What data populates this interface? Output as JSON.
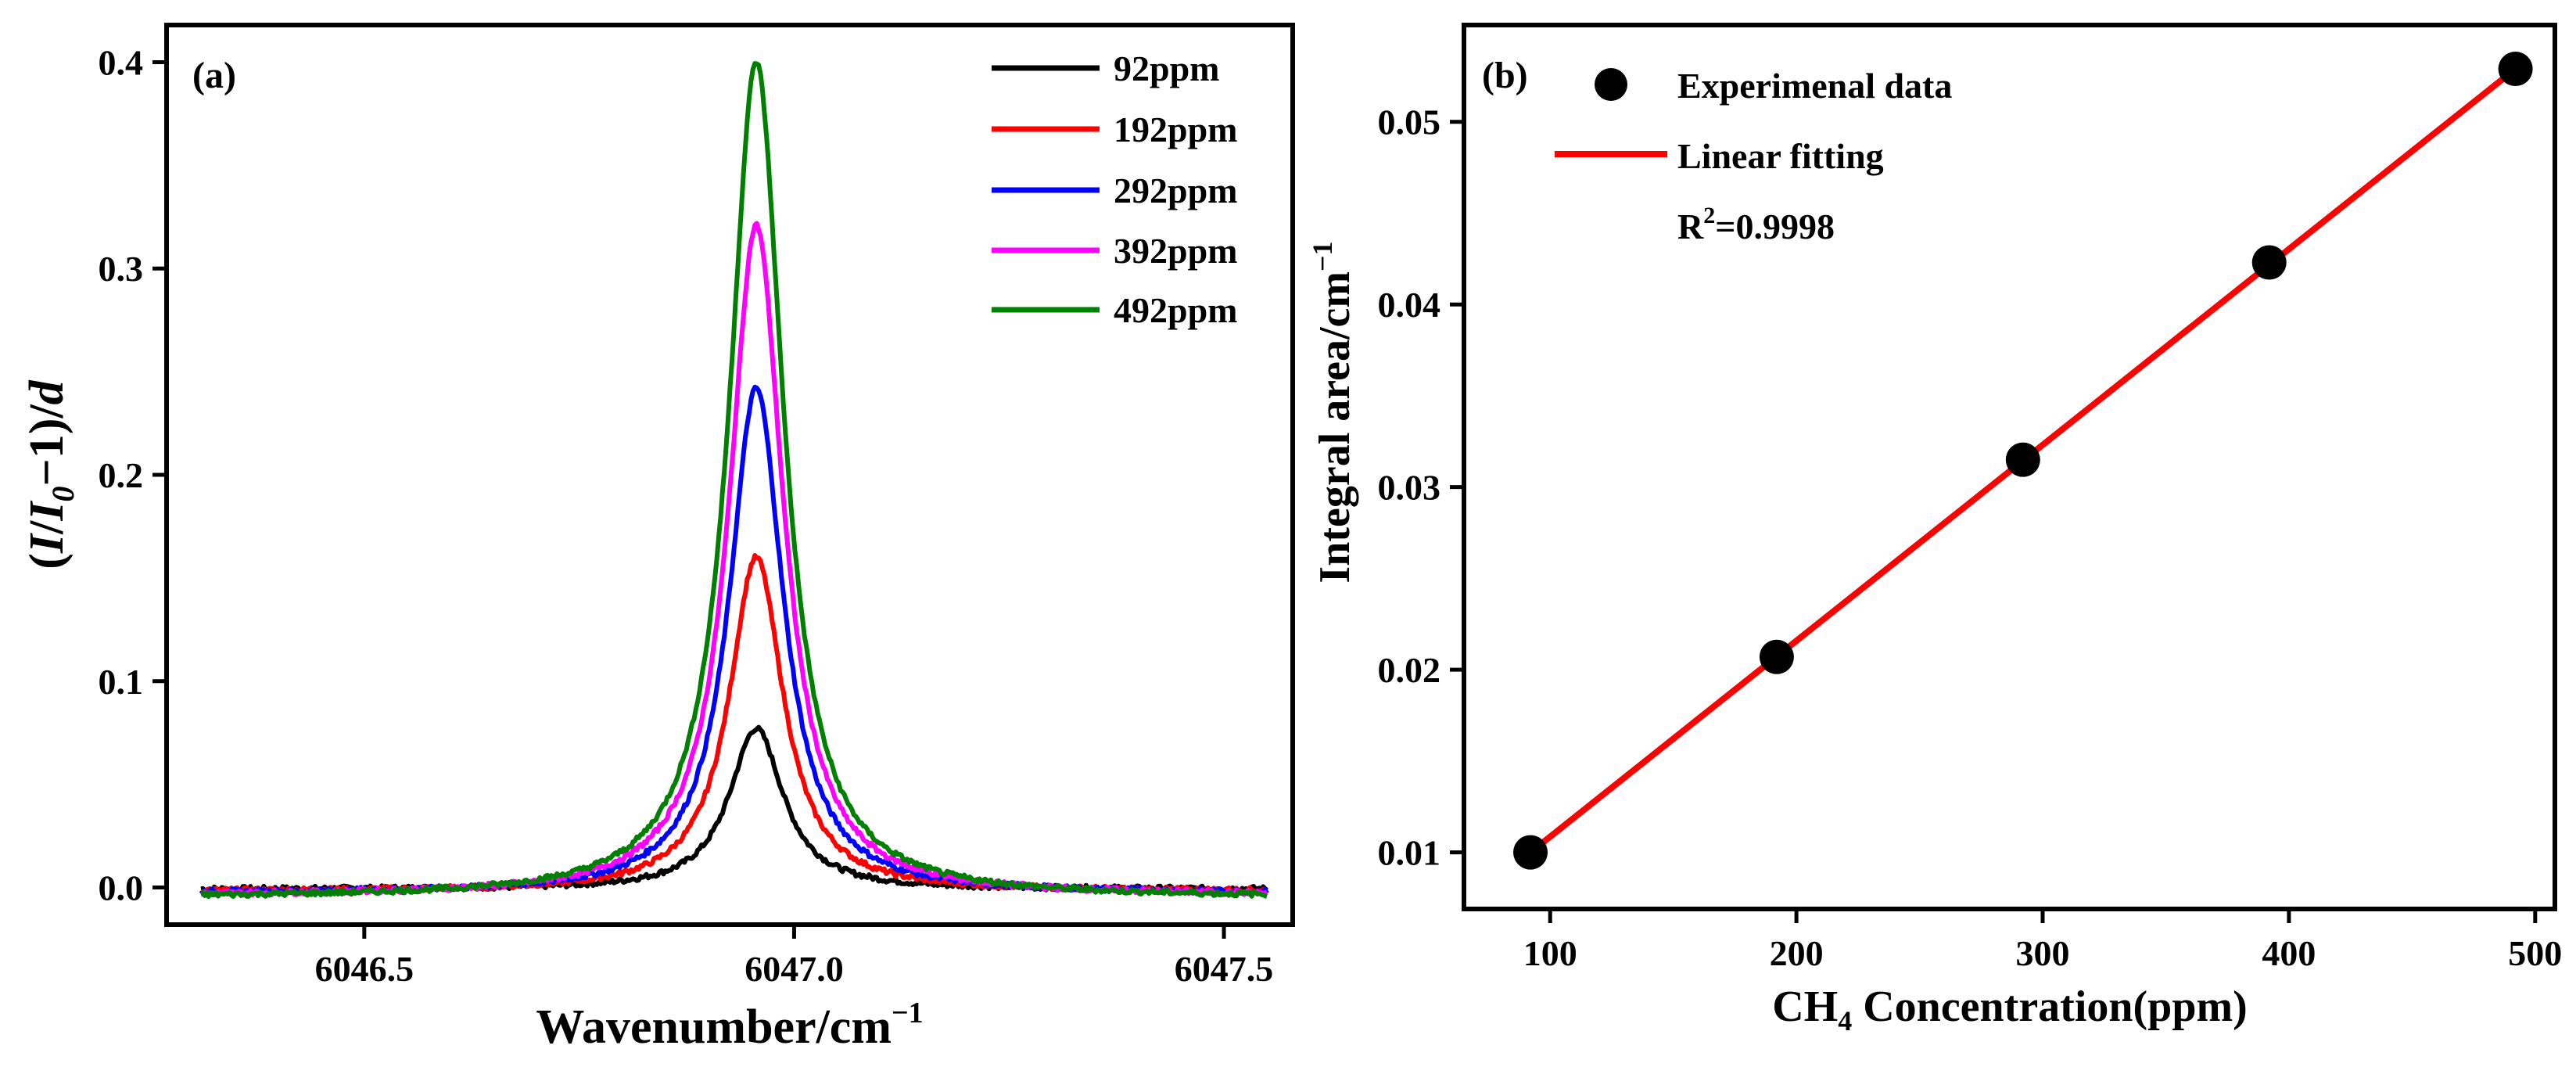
{
  "figure": "Two-panel CH4 absorption spectroscopy figure",
  "chart_data": [
    {
      "type": "line",
      "panel": "(a)",
      "xlabel": "Wavenumber/cm⁻¹",
      "xlabel_main": "Wavenumber/cm",
      "xlabel_sup": "−1",
      "ylabel": "(I/I0−1)/d",
      "ylabel_parts": {
        "open": "(",
        "I": "I",
        "slash": "/",
        "I0": "I",
        "sub": "0",
        "minus": "−1)/",
        "d": "d"
      },
      "xlim": [
        6046.27,
        6047.58
      ],
      "ylim": [
        -0.018,
        0.418
      ],
      "xticks": [
        6046.5,
        6047.0,
        6047.5
      ],
      "xtick_labels": [
        "6046.5",
        "6047.0",
        "6047.5"
      ],
      "yticks": [
        0.0,
        0.1,
        0.2,
        0.3,
        0.4
      ],
      "ytick_labels": [
        "0.0",
        "0.1",
        "0.2",
        "0.3",
        "0.4"
      ],
      "center": 6046.956,
      "half_width": 0.038,
      "series": [
        {
          "name": "92ppm",
          "color": "#000000",
          "peak": 0.078
        },
        {
          "name": "192ppm",
          "color": "#ff0000",
          "peak": 0.162
        },
        {
          "name": "292ppm",
          "color": "#0000ff",
          "peak": 0.245
        },
        {
          "name": "392ppm",
          "color": "#ff00ff",
          "peak": 0.325
        },
        {
          "name": "492ppm",
          "color": "#008000",
          "peak": 0.405
        }
      ],
      "legend_position": "top-right"
    },
    {
      "type": "scatter",
      "panel": "(b)",
      "xlabel": "CH4 Concentration(ppm)",
      "xlabel_parts": {
        "pre": "CH",
        "sub": "4",
        "post": " Concentration(ppm)"
      },
      "ylabel": "Integral area/cm⁻¹",
      "ylabel_main": "Integral area/cm",
      "ylabel_sup": "−1",
      "xlim": [
        65,
        508
      ],
      "ylim": [
        0.0069,
        0.0553
      ],
      "xticks": [
        100,
        200,
        300,
        400,
        500
      ],
      "xtick_labels": [
        "100",
        "200",
        "300",
        "400",
        "500"
      ],
      "yticks": [
        0.01,
        0.02,
        0.03,
        0.04,
        0.05
      ],
      "ytick_labels": [
        "0.01",
        "0.02",
        "0.03",
        "0.04",
        "0.05"
      ],
      "series": [
        {
          "name": "Experimenal data",
          "x": [
            92,
            192,
            292,
            392,
            492
          ],
          "y": [
            0.01,
            0.0207,
            0.0315,
            0.0423,
            0.0529
          ],
          "color": "#000000"
        },
        {
          "name": "Linear fitting",
          "type": "line",
          "x": [
            92,
            492
          ],
          "y": [
            0.01,
            0.0529
          ],
          "color": "#ff0000"
        }
      ],
      "annotation": {
        "text": "R²=0.9998",
        "base": "R",
        "sup": "2",
        "rest": "=0.9998"
      },
      "legend_position": "top-left"
    }
  ]
}
